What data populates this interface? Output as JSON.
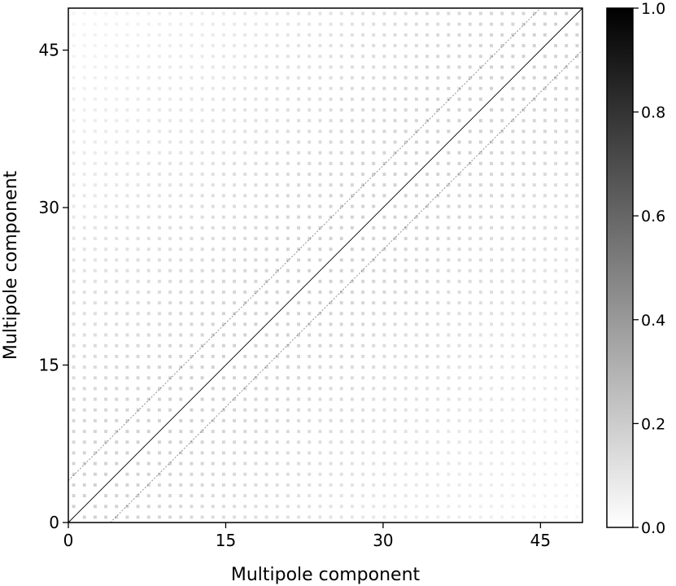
{
  "chart_data": {
    "type": "heatmap",
    "title": "",
    "xlabel": "Multipole component",
    "ylabel": "Multipole component",
    "x_ticks": [
      0,
      15,
      30,
      45
    ],
    "y_ticks": [
      0,
      15,
      30,
      45
    ],
    "xlim": [
      0,
      49
    ],
    "ylim": [
      0,
      49
    ],
    "colormap": "Greys",
    "color_min": "#ffffff",
    "color_max": "#000000",
    "colorbar": {
      "ticks": [
        "0.0",
        "0.2",
        "0.4",
        "0.6",
        "0.8",
        "1.0"
      ],
      "range": [
        0.0,
        1.0
      ]
    },
    "structure": {
      "main_diagonal_value": 1.0,
      "off_diagonal_offsets": [
        4,
        -4
      ],
      "off_diagonal_value": 0.6,
      "background_value": 0.03
    }
  }
}
